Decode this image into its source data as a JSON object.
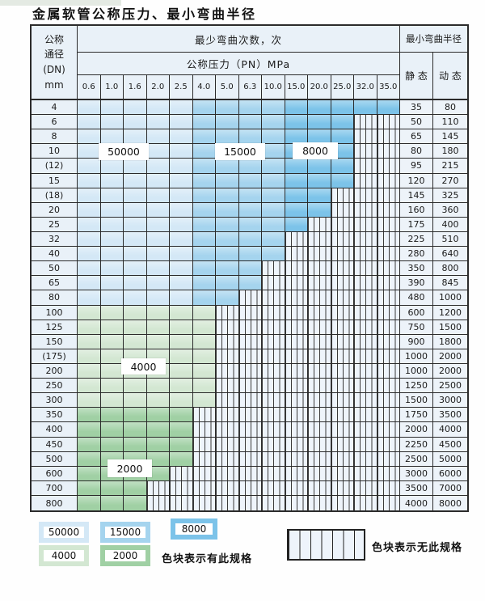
{
  "page": {
    "title": "金属软管公称压力、最小弯曲半径"
  },
  "table": {
    "corner": "公称\n通径\n(DN)\nmm",
    "top_header": "最少弯曲次数，次",
    "pressure_header": "公称压力（PN）MPa",
    "radius_header": "最小弯曲半径",
    "static_label": "静 态",
    "dynamic_label": "动 态",
    "pressures": [
      "0.6",
      "1.0",
      "1.6",
      "2.0",
      "2.5",
      "4.0",
      "5.0",
      "6.3",
      "10.0",
      "15.0",
      "20.0",
      "25.0",
      "32.0",
      "35.0"
    ],
    "rows": [
      {
        "dn": "4",
        "static": "35",
        "dynamic": "80",
        "end": 14,
        "zone": "blue"
      },
      {
        "dn": "6",
        "static": "50",
        "dynamic": "110",
        "end": 12,
        "zone": "blue"
      },
      {
        "dn": "8",
        "static": "65",
        "dynamic": "145",
        "end": 12,
        "zone": "blue"
      },
      {
        "dn": "10",
        "static": "80",
        "dynamic": "180",
        "end": 12,
        "zone": "blue"
      },
      {
        "dn": "(12)",
        "static": "95",
        "dynamic": "215",
        "end": 12,
        "zone": "blue"
      },
      {
        "dn": "15",
        "static": "120",
        "dynamic": "270",
        "end": 12,
        "zone": "blue"
      },
      {
        "dn": "(18)",
        "static": "145",
        "dynamic": "325",
        "end": 11,
        "zone": "blue"
      },
      {
        "dn": "20",
        "static": "160",
        "dynamic": "360",
        "end": 11,
        "zone": "blue"
      },
      {
        "dn": "25",
        "static": "175",
        "dynamic": "400",
        "end": 10,
        "zone": "blue"
      },
      {
        "dn": "32",
        "static": "225",
        "dynamic": "510",
        "end": 9,
        "zone": "blue"
      },
      {
        "dn": "40",
        "static": "280",
        "dynamic": "640",
        "end": 9,
        "zone": "blue"
      },
      {
        "dn": "50",
        "static": "350",
        "dynamic": "800",
        "end": 8,
        "zone": "blue"
      },
      {
        "dn": "65",
        "static": "390",
        "dynamic": "845",
        "end": 8,
        "zone": "blue"
      },
      {
        "dn": "80",
        "static": "480",
        "dynamic": "1000",
        "end": 7,
        "zone": "blue"
      },
      {
        "dn": "100",
        "static": "600",
        "dynamic": "1200",
        "end": 6,
        "zone": "g1"
      },
      {
        "dn": "125",
        "static": "750",
        "dynamic": "1500",
        "end": 6,
        "zone": "g1"
      },
      {
        "dn": "150",
        "static": "900",
        "dynamic": "1800",
        "end": 6,
        "zone": "g1"
      },
      {
        "dn": "(175)",
        "static": "1000",
        "dynamic": "2000",
        "end": 6,
        "zone": "g1"
      },
      {
        "dn": "200",
        "static": "1000",
        "dynamic": "2000",
        "end": 6,
        "zone": "g1"
      },
      {
        "dn": "250",
        "static": "1250",
        "dynamic": "2500",
        "end": 6,
        "zone": "g1"
      },
      {
        "dn": "300",
        "static": "1500",
        "dynamic": "3000",
        "end": 6,
        "zone": "g1"
      },
      {
        "dn": "350",
        "static": "1750",
        "dynamic": "3500",
        "end": 5,
        "zone": "g2"
      },
      {
        "dn": "400",
        "static": "2000",
        "dynamic": "4000",
        "end": 5,
        "zone": "g2"
      },
      {
        "dn": "450",
        "static": "2250",
        "dynamic": "4500",
        "end": 5,
        "zone": "g2"
      },
      {
        "dn": "500",
        "static": "2500",
        "dynamic": "5000",
        "end": 5,
        "zone": "g2"
      },
      {
        "dn": "600",
        "static": "3000",
        "dynamic": "6000",
        "end": 4,
        "zone": "g2"
      },
      {
        "dn": "700",
        "static": "3500",
        "dynamic": "7000",
        "end": 3,
        "zone": "g2"
      },
      {
        "dn": "800",
        "static": "4000",
        "dynamic": "8000",
        "end": 3,
        "zone": "g2"
      }
    ]
  },
  "zones": {
    "blue_breaks": [
      5,
      9
    ],
    "overlays": {
      "b50000": "50000",
      "b15000": "15000",
      "b8000": "8000",
      "g4000": "4000",
      "g2000": "2000"
    }
  },
  "legend": {
    "has_spec": [
      {
        "value": "50000",
        "color_key": "blue1"
      },
      {
        "value": "15000",
        "color_key": "blue2"
      },
      {
        "value": "8000",
        "color_key": "blue3"
      },
      {
        "value": "4000",
        "color_key": "green1"
      },
      {
        "value": "2000",
        "color_key": "green2"
      }
    ],
    "has_spec_text": "色块表示有此规格",
    "no_spec_text": "色块表示无此规格"
  },
  "colors": {
    "blue1": "#d4e8f6",
    "blue2": "#a5d4ee",
    "blue3": "#7cc3e9",
    "green1": "#d3e7d2",
    "green2": "#a0d0a4",
    "label_bg": "#e9f1f8",
    "valcell_bg": "#edf3f9",
    "hatch_bg": "#eef4fb",
    "hatch_line": "#3a3a3a",
    "border": "#2b2b2b"
  }
}
